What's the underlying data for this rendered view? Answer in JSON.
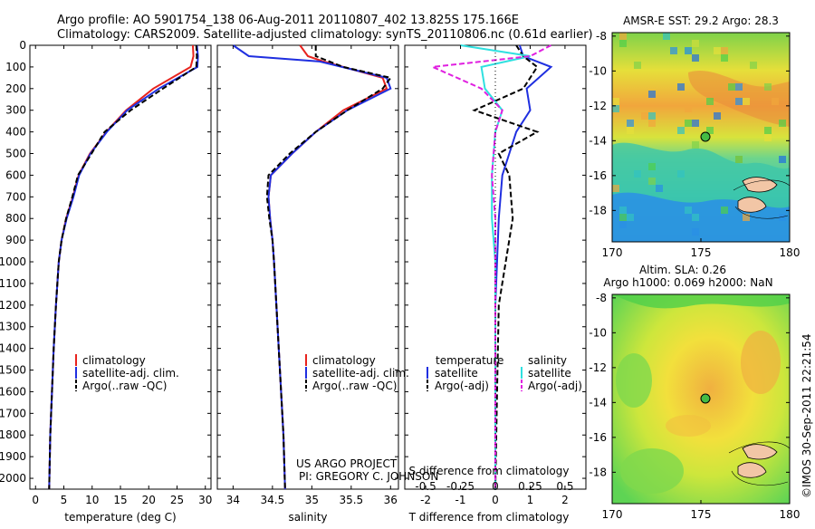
{
  "header": {
    "line1": "Argo profile: AO 5901754_138 06-Aug-2011 20110807_402 13.825S 175.166E",
    "line2": "Climatology: CARS2009. Satellite-adjusted climatology: synTS_20110806.nc (0.61d earlier)"
  },
  "credits": {
    "project": "US ARGO PROJECT",
    "pi": "PI: GREGORY C. JOHNSON",
    "imos": "©IMOS 30-Sep-2011 22:21:54"
  },
  "colors": {
    "climatology": "#e8231e",
    "satellite": "#1f2fe0",
    "argo": "#000000",
    "sal_satellite": "#2fe0e0",
    "sal_argo": "#e020e0",
    "dot": "#44bb44"
  },
  "chart_data": [
    {
      "type": "line",
      "xlabel": "temperature (deg C)",
      "ylim": [
        2050,
        0
      ],
      "xlim": [
        -1,
        31
      ],
      "xticks": [
        0,
        5,
        10,
        15,
        20,
        25,
        30
      ],
      "yticks": [
        0,
        100,
        200,
        300,
        400,
        500,
        600,
        700,
        800,
        900,
        1000,
        1100,
        1200,
        1300,
        1400,
        1500,
        1600,
        1700,
        1800,
        1900,
        2000
      ],
      "legend": [
        "climatology",
        "satellite-adj. clim.",
        "Argo(..raw -QC)"
      ],
      "series": [
        {
          "name": "climatology",
          "x": [
            27.8,
            27.9,
            27.4,
            20.8,
            16.0,
            12.5,
            9.6,
            7.6,
            6.6,
            5.4,
            4.6,
            4.1,
            3.6,
            3.2,
            2.9,
            2.6,
            2.4
          ],
          "y": [
            0,
            50,
            100,
            200,
            300,
            400,
            500,
            600,
            700,
            800,
            900,
            1000,
            1200,
            1400,
            1600,
            1800,
            2050
          ]
        },
        {
          "name": "satellite-adj. clim.",
          "x": [
            28.5,
            28.7,
            28.6,
            21.8,
            16.2,
            12.6,
            9.7,
            7.7,
            6.7,
            5.5,
            4.6,
            4.1,
            3.6,
            3.2,
            2.9,
            2.6,
            2.4
          ],
          "y": [
            0,
            50,
            100,
            200,
            300,
            400,
            500,
            600,
            700,
            800,
            900,
            1000,
            1200,
            1400,
            1600,
            1800,
            2050
          ]
        },
        {
          "name": "Argo(..raw -QC)",
          "x": [
            28.4,
            28.5,
            28.4,
            22.5,
            16.8,
            12.2,
            9.9,
            7.5,
            6.5,
            5.4,
            4.6,
            4.1,
            3.6,
            3.2,
            2.9,
            2.6,
            2.4
          ],
          "y": [
            0,
            50,
            100,
            200,
            300,
            400,
            500,
            600,
            700,
            800,
            900,
            1000,
            1200,
            1400,
            1600,
            1800,
            2050
          ]
        }
      ]
    },
    {
      "type": "line",
      "xlabel": "salinity",
      "ylim": [
        2050,
        0
      ],
      "xlim": [
        33.8,
        36.1
      ],
      "xticks": [
        34,
        34.5,
        35,
        35.5,
        36
      ],
      "legend": [
        "climatology",
        "satellite-adj. clim.",
        "Argo(..raw -QC)"
      ],
      "series": [
        {
          "name": "climatology",
          "x": [
            34.85,
            34.95,
            35.15,
            35.9,
            35.95,
            35.4,
            35.05,
            34.75,
            34.48,
            34.45,
            34.47,
            34.5,
            34.52,
            34.55,
            34.58,
            34.61,
            34.64,
            34.66
          ],
          "y": [
            0,
            50,
            75,
            150,
            200,
            300,
            400,
            500,
            600,
            700,
            800,
            900,
            1000,
            1200,
            1400,
            1600,
            1800,
            2050
          ]
        },
        {
          "name": "satellite-adj. clim.",
          "x": [
            34.0,
            34.2,
            35.1,
            35.95,
            36.0,
            35.45,
            35.05,
            34.75,
            34.48,
            34.45,
            34.47,
            34.5,
            34.52,
            34.55,
            34.58,
            34.61,
            34.64,
            34.66
          ],
          "y": [
            0,
            50,
            75,
            150,
            200,
            300,
            400,
            500,
            600,
            700,
            800,
            900,
            1000,
            1200,
            1400,
            1600,
            1800,
            2050
          ]
        },
        {
          "name": "Argo(..raw -QC)",
          "x": [
            35.05,
            35.05,
            35.4,
            36.0,
            35.9,
            35.45,
            35.05,
            34.72,
            34.45,
            34.43,
            34.46,
            34.5,
            34.52,
            34.55,
            34.58,
            34.61,
            34.64,
            34.66
          ],
          "y": [
            0,
            50,
            100,
            150,
            200,
            300,
            400,
            500,
            600,
            700,
            800,
            900,
            1000,
            1200,
            1400,
            1600,
            1800,
            2050
          ]
        }
      ]
    },
    {
      "type": "line",
      "xlabel": "T difference from climatology",
      "top_label": "S difference from climatology",
      "ylim": [
        2050,
        0
      ],
      "xlim": [
        -2.6,
        2.6
      ],
      "xticks": [
        -2,
        -1,
        0,
        1,
        2
      ],
      "top_xticks": [
        "-0.5",
        "-0.25",
        "0",
        "0.25",
        "0.5"
      ],
      "top_xticks_pos": [
        -2,
        -1,
        0,
        1,
        2
      ],
      "legend_groups": {
        "temperature": [
          "satellite",
          "Argo(-adj)"
        ],
        "salinity": [
          "satellite",
          "Argo(-adj)"
        ]
      },
      "legend_titles": [
        "temperature",
        "salinity"
      ],
      "series": [
        {
          "name": "temperature satellite",
          "x": [
            0.7,
            0.8,
            1.6,
            0.9,
            1.0,
            0.6,
            0.4,
            0.2,
            0.1,
            0.05,
            0.0,
            0.0,
            0.0
          ],
          "y": [
            0,
            50,
            100,
            200,
            300,
            400,
            500,
            600,
            800,
            1000,
            1200,
            1600,
            2050
          ]
        },
        {
          "name": "temperature Argo(-adj)",
          "x": [
            0.6,
            0.8,
            1.2,
            0.8,
            -0.6,
            1.2,
            0.1,
            0.4,
            0.5,
            0.3,
            0.1,
            0.05,
            0.0
          ],
          "y": [
            0,
            50,
            100,
            200,
            300,
            400,
            500,
            600,
            800,
            1000,
            1200,
            1600,
            2050
          ]
        },
        {
          "name": "salinity satellite",
          "x": [
            -1.0,
            1.0,
            -0.4,
            -0.3,
            0.2,
            0.0,
            -0.1,
            -0.1,
            0.0,
            0.0,
            0.0,
            0.0
          ],
          "y": [
            0,
            50,
            100,
            200,
            300,
            400,
            600,
            800,
            1000,
            1200,
            1600,
            2050
          ]
        },
        {
          "name": "salinity Argo(-adj)",
          "x": [
            1.6,
            1.0,
            -1.8,
            -0.4,
            0.2,
            0.0,
            -0.1,
            0.0,
            0.0,
            0.0,
            0.0,
            0.0
          ],
          "y": [
            0,
            50,
            100,
            200,
            300,
            400,
            600,
            800,
            1000,
            1200,
            1600,
            2050
          ]
        }
      ]
    },
    {
      "type": "heatmap",
      "title": "AMSR-E SST: 29.2 Argo: 28.3",
      "xlim": [
        170,
        180
      ],
      "ylim": [
        -19.8,
        -7.8
      ],
      "xticks": [
        170,
        175,
        180
      ],
      "yticks": [
        -8,
        -10,
        -12,
        -14,
        -16,
        -18
      ],
      "marker": {
        "lon": 175.166,
        "lat": -13.825
      }
    },
    {
      "type": "heatmap",
      "title": "Altim. SLA: 0.26",
      "subtitle": "Argo h1000: 0.069 h2000: NaN",
      "xlim": [
        170,
        180
      ],
      "ylim": [
        -19.8,
        -7.8
      ],
      "xticks": [
        170,
        175,
        180
      ],
      "yticks": [
        -8,
        -10,
        -12,
        -14,
        -16,
        -18
      ],
      "marker": {
        "lon": 175.166,
        "lat": -13.825
      }
    }
  ]
}
